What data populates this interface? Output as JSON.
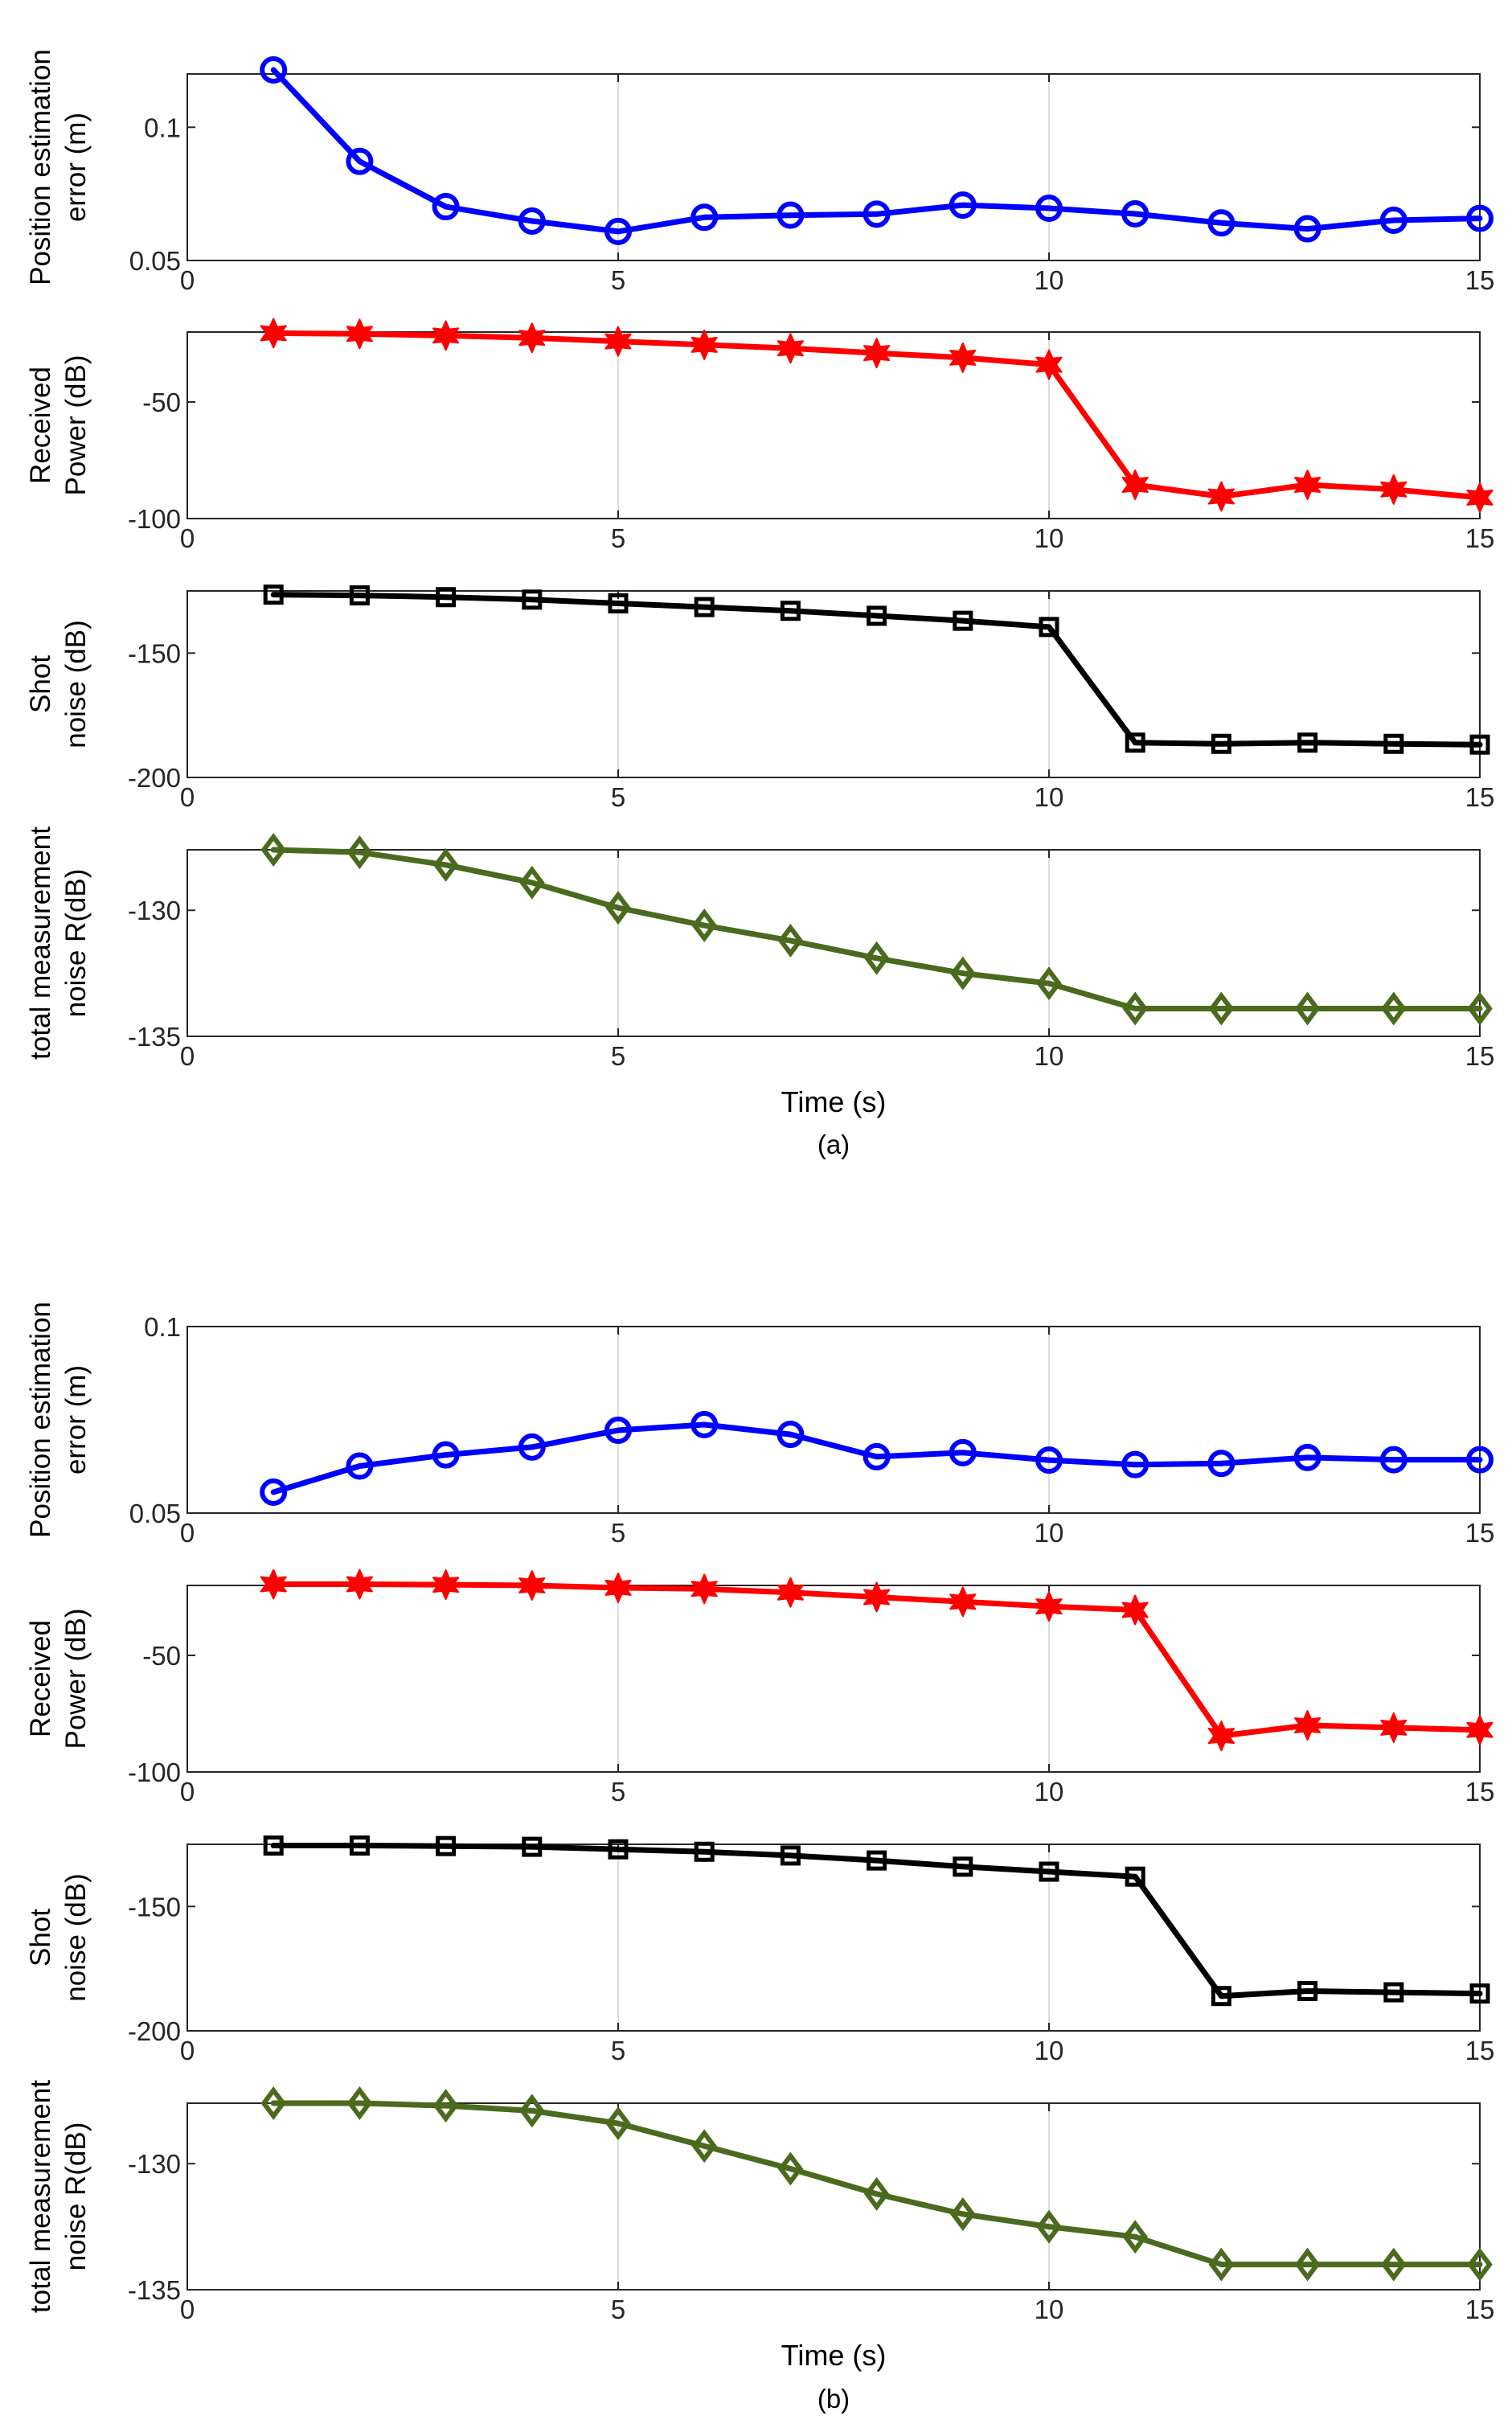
{
  "chart_data": [
    {
      "group": "a",
      "caption": "(a)",
      "xlabel": "Time (s)",
      "panels": [
        {
          "type": "line",
          "name": "position-error",
          "ylabel_lines": [
            "Position estimation",
            "error (m)"
          ],
          "ylim": [
            0.05,
            0.12
          ],
          "yticks": [
            0.05,
            0.1
          ],
          "ytick_labels": [
            "0.05",
            "0.1"
          ],
          "xlim": [
            0,
            15
          ],
          "xticks": [
            0,
            5,
            10,
            15
          ],
          "xtick_labels": [
            "0",
            "5",
            "10",
            "15"
          ],
          "color": "#0000ff",
          "marker": "circle",
          "x": [
            1,
            2,
            3,
            4,
            5,
            6,
            7,
            8,
            9,
            10,
            11,
            12,
            13,
            14,
            15
          ],
          "y": [
            0.1215,
            0.0872,
            0.0702,
            0.0648,
            0.0609,
            0.0662,
            0.067,
            0.0674,
            0.0708,
            0.0696,
            0.0675,
            0.0641,
            0.0619,
            0.0651,
            0.0658
          ]
        },
        {
          "type": "line",
          "name": "received-power",
          "ylabel_lines": [
            "Received",
            "Power (dB)"
          ],
          "ylim": [
            -100,
            -20
          ],
          "yticks": [
            -100,
            -50
          ],
          "ytick_labels": [
            "-100",
            "-50"
          ],
          "xlim": [
            0,
            15
          ],
          "xticks": [
            0,
            5,
            10,
            15
          ],
          "xtick_labels": [
            "0",
            "5",
            "10",
            "15"
          ],
          "color": "#ff0000",
          "marker": "star",
          "x": [
            1,
            2,
            3,
            4,
            5,
            6,
            7,
            8,
            9,
            10,
            11,
            12,
            13,
            14,
            15
          ],
          "y": [
            -20.5,
            -20.8,
            -21.5,
            -22.5,
            -24.0,
            -25.5,
            -27.0,
            -29.0,
            -31.0,
            -34.0,
            -85.5,
            -90.5,
            -85.5,
            -87.5,
            -91.0
          ]
        },
        {
          "type": "line",
          "name": "shot-noise",
          "ylabel_lines": [
            "Shot",
            "noise (dB)"
          ],
          "ylim": [
            -200,
            -125
          ],
          "yticks": [
            -200,
            -150
          ],
          "ytick_labels": [
            "-200",
            "-150"
          ],
          "xlim": [
            0,
            15
          ],
          "xticks": [
            0,
            5,
            10,
            15
          ],
          "xtick_labels": [
            "0",
            "5",
            "10",
            "15"
          ],
          "color": "#000000",
          "marker": "square",
          "x": [
            1,
            2,
            3,
            4,
            5,
            6,
            7,
            8,
            9,
            10,
            11,
            12,
            13,
            14,
            15
          ],
          "y": [
            -126.5,
            -126.8,
            -127.5,
            -128.5,
            -130.0,
            -131.5,
            -133.0,
            -135.0,
            -137.0,
            -139.5,
            -186.0,
            -186.5,
            -186.0,
            -186.5,
            -186.8
          ]
        },
        {
          "type": "line",
          "name": "total-measurement-noise",
          "ylabel_lines": [
            "total measurement",
            "noise R(dB)"
          ],
          "ylim": [
            -135,
            -127.6
          ],
          "yticks": [
            -135,
            -130
          ],
          "ytick_labels": [
            "-135",
            "-130"
          ],
          "xlim": [
            0,
            15
          ],
          "xticks": [
            0,
            5,
            10,
            15
          ],
          "xtick_labels": [
            "0",
            "5",
            "10",
            "15"
          ],
          "color": "#4a6b1e",
          "marker": "diamond",
          "x": [
            1,
            2,
            3,
            4,
            5,
            6,
            7,
            8,
            9,
            10,
            11,
            12,
            13,
            14,
            15
          ],
          "y": [
            -127.6,
            -127.7,
            -128.2,
            -128.9,
            -129.9,
            -130.6,
            -131.2,
            -131.9,
            -132.5,
            -132.9,
            -133.9,
            -133.9,
            -133.9,
            -133.9,
            -133.9
          ]
        }
      ]
    },
    {
      "group": "b",
      "caption": "(b)",
      "xlabel": "Time (s)",
      "panels": [
        {
          "type": "line",
          "name": "position-error",
          "ylabel_lines": [
            "Position estimation",
            "error (m)"
          ],
          "ylim": [
            0.05,
            0.1
          ],
          "yticks": [
            0.05,
            0.1
          ],
          "ytick_labels": [
            "0.05",
            "0.1"
          ],
          "xlim": [
            0,
            15
          ],
          "xticks": [
            0,
            5,
            10,
            15
          ],
          "xtick_labels": [
            "0",
            "5",
            "10",
            "15"
          ],
          "color": "#0000ff",
          "marker": "circle",
          "x": [
            1,
            2,
            3,
            4,
            5,
            6,
            7,
            8,
            9,
            10,
            11,
            12,
            13,
            14,
            15
          ],
          "y": [
            0.0556,
            0.0626,
            0.0656,
            0.0677,
            0.0722,
            0.0737,
            0.0711,
            0.0651,
            0.0662,
            0.0642,
            0.063,
            0.0633,
            0.0649,
            0.0643,
            0.0643
          ]
        },
        {
          "type": "line",
          "name": "received-power",
          "ylabel_lines": [
            "Received",
            "Power (dB)"
          ],
          "ylim": [
            -100,
            -20
          ],
          "yticks": [
            -100,
            -50
          ],
          "ytick_labels": [
            "-100",
            "-50"
          ],
          "xlim": [
            0,
            15
          ],
          "xticks": [
            0,
            5,
            10,
            15
          ],
          "xtick_labels": [
            "0",
            "5",
            "10",
            "15"
          ],
          "color": "#ff0000",
          "marker": "star",
          "x": [
            1,
            2,
            3,
            4,
            5,
            6,
            7,
            8,
            9,
            10,
            11,
            12,
            13,
            14,
            15
          ],
          "y": [
            -19.5,
            -19.5,
            -19.7,
            -20.0,
            -21.0,
            -21.5,
            -23.0,
            -25.0,
            -27.0,
            -29.0,
            -30.5,
            -84.5,
            -80.0,
            -81.0,
            -82.0
          ]
        },
        {
          "type": "line",
          "name": "shot-noise",
          "ylabel_lines": [
            "Shot",
            "noise (dB)"
          ],
          "ylim": [
            -200,
            -125
          ],
          "yticks": [
            -200,
            -150
          ],
          "ytick_labels": [
            "-200",
            "-150"
          ],
          "xlim": [
            0,
            15
          ],
          "xticks": [
            0,
            5,
            10,
            15
          ],
          "xtick_labels": [
            "0",
            "5",
            "10",
            "15"
          ],
          "color": "#000000",
          "marker": "square",
          "x": [
            1,
            2,
            3,
            4,
            5,
            6,
            7,
            8,
            9,
            10,
            11,
            12,
            13,
            14,
            15
          ],
          "y": [
            -125.5,
            -125.5,
            -125.7,
            -126.0,
            -127.0,
            -128.0,
            -129.5,
            -131.5,
            -134.0,
            -136.0,
            -138.0,
            -186.0,
            -184.0,
            -184.5,
            -185.0
          ]
        },
        {
          "type": "line",
          "name": "total-measurement-noise",
          "ylabel_lines": [
            "total measurement",
            "noise R(dB)"
          ],
          "ylim": [
            -135,
            -127.6
          ],
          "yticks": [
            -135,
            -130
          ],
          "ytick_labels": [
            "-135",
            "-130"
          ],
          "xlim": [
            0,
            15
          ],
          "xticks": [
            0,
            5,
            10,
            15
          ],
          "xtick_labels": [
            "0",
            "5",
            "10",
            "15"
          ],
          "color": "#4a6b1e",
          "marker": "diamond",
          "x": [
            1,
            2,
            3,
            4,
            5,
            6,
            7,
            8,
            9,
            10,
            11,
            12,
            13,
            14,
            15
          ],
          "y": [
            -127.6,
            -127.6,
            -127.7,
            -127.9,
            -128.4,
            -129.3,
            -130.2,
            -131.2,
            -132.0,
            -132.5,
            -132.9,
            -134.0,
            -134.0,
            -134.0,
            -134.0
          ]
        }
      ]
    }
  ]
}
